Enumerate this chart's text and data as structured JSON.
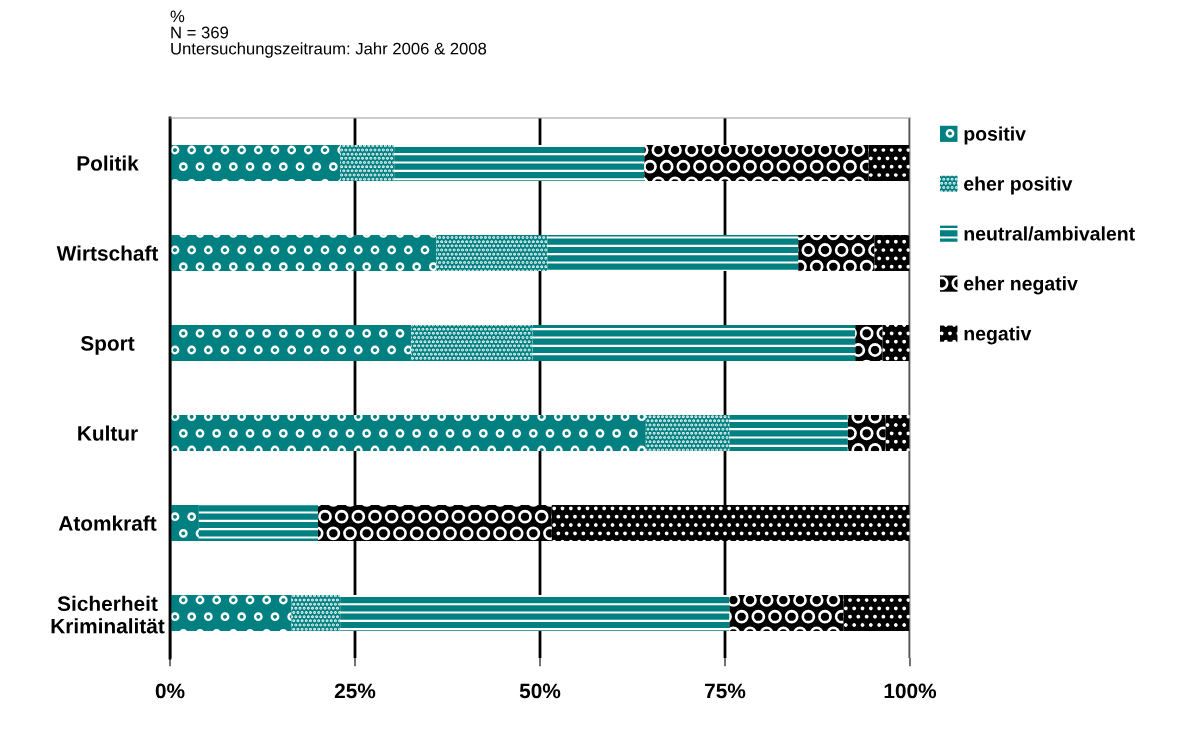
{
  "chart_data": {
    "type": "bar",
    "orientation": "horizontal",
    "stacked": true,
    "title": "%",
    "subtitle": "N = 369",
    "annotations": [
      "Untersuchungszeitraum: Jahr 2006 & 2008"
    ],
    "categories": [
      "Politik",
      "Wirtschaft",
      "Sport",
      "Kultur",
      "Atomkraft",
      "Sicherheit\nKriminalität"
    ],
    "series": [
      {
        "name": "positiv",
        "color": "#008080",
        "values": [
          23.0,
          36.0,
          32.6,
          64.3,
          3.9,
          16.4
        ]
      },
      {
        "name": "eher positiv",
        "color": "#008080",
        "values": [
          7.3,
          15.0,
          16.4,
          11.3,
          0,
          6.6
        ]
      },
      {
        "name": "neutral/ambivalent",
        "color": "#008080",
        "values": [
          33.8,
          33.9,
          43.6,
          16.0,
          16.1,
          52.6
        ]
      },
      {
        "name": "eher negativ",
        "color": "#000000",
        "values": [
          30.3,
          10.3,
          3.7,
          5.1,
          31.6,
          15.4
        ]
      },
      {
        "name": "negativ",
        "color": "#000000",
        "values": [
          5.6,
          4.8,
          3.7,
          3.3,
          48.4,
          9.0
        ]
      }
    ],
    "xlim": [
      0,
      100
    ],
    "xticks": [
      {
        "value": 0,
        "label": "0%"
      },
      {
        "value": 25,
        "label": "25%"
      },
      {
        "value": 50,
        "label": "50%"
      },
      {
        "value": 75,
        "label": "75%"
      },
      {
        "value": 100,
        "label": "100%"
      }
    ],
    "grid": "x",
    "legend": "right"
  }
}
